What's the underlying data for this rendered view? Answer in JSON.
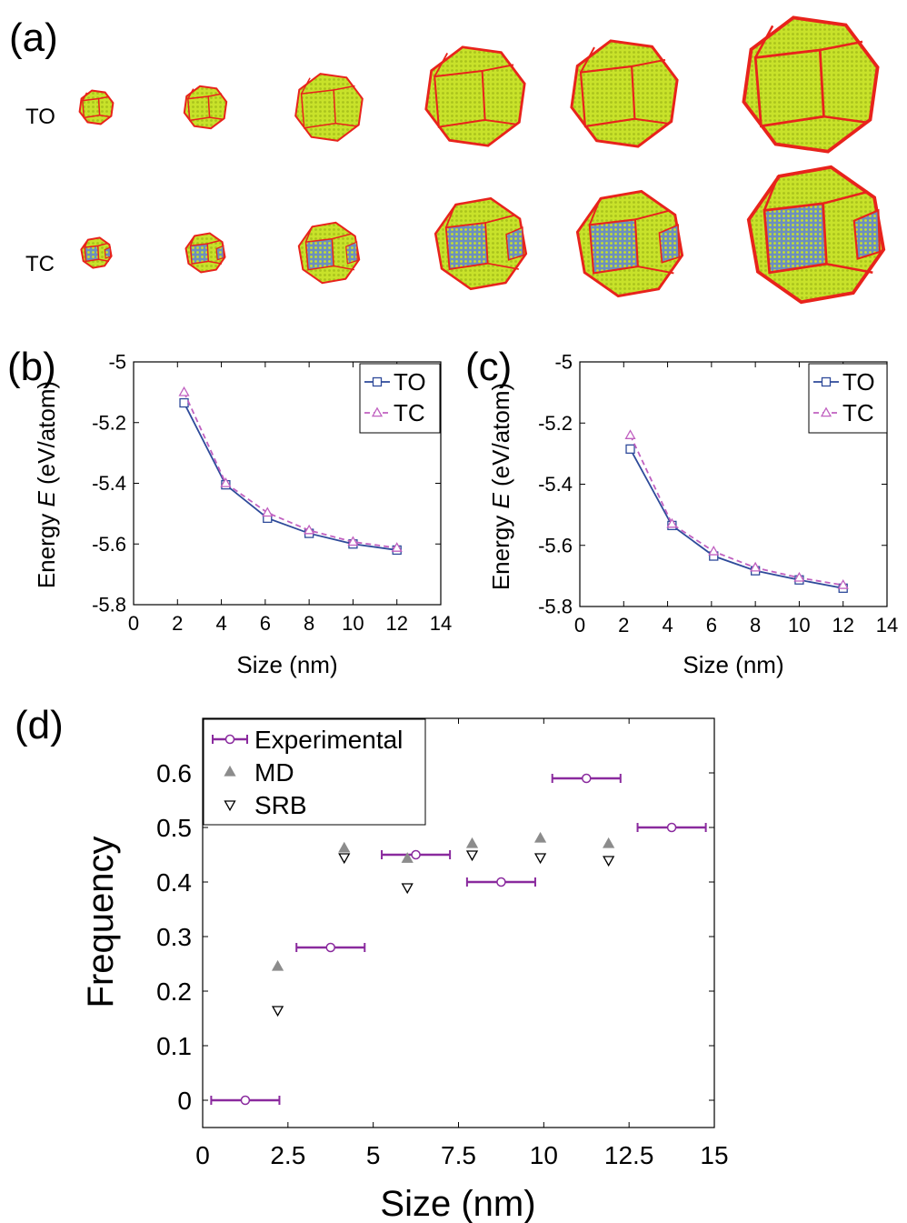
{
  "panel_a": {
    "label": "(a)",
    "row_labels": [
      "TO",
      "TC"
    ],
    "colors": {
      "face": "#c8e22a",
      "edge": "#e8231c",
      "square_face": "#6c8fbe"
    }
  },
  "chart_data": [
    {
      "id": "b",
      "panel_label": "(b)",
      "type": "line",
      "xlabel": "Size (nm)",
      "ylabel_prefix": "Energy ",
      "ylabel_var": "E",
      "ylabel_unit": " (eV/atom)",
      "xlim": [
        0,
        14
      ],
      "ylim": [
        -5.8,
        -5.0
      ],
      "xticks": [
        0,
        2,
        4,
        6,
        8,
        10,
        12,
        14
      ],
      "yticks": [
        -5.8,
        -5.6,
        -5.4,
        -5.2,
        -5
      ],
      "ytick_labels": [
        "-5.8",
        "-5.6",
        "-5.4",
        "-5.2",
        "-5"
      ],
      "legend_position": "top-right",
      "x": [
        2.3,
        4.2,
        6.1,
        8.0,
        10.0,
        12.0
      ],
      "series": [
        {
          "name": "TO",
          "marker": "square",
          "line": "solid",
          "color": "#2e4a9a",
          "values": [
            -5.135,
            -5.405,
            -5.515,
            -5.565,
            -5.6,
            -5.62
          ]
        },
        {
          "name": "TC",
          "marker": "triangle-up",
          "line": "dashed",
          "color": "#c060c0",
          "values": [
            -5.1,
            -5.4,
            -5.497,
            -5.555,
            -5.593,
            -5.613
          ]
        }
      ]
    },
    {
      "id": "c",
      "panel_label": "(c)",
      "type": "line",
      "xlabel": "Size (nm)",
      "ylabel_prefix": "Energy ",
      "ylabel_var": "E",
      "ylabel_unit": " (eV/atom)",
      "xlim": [
        0,
        14
      ],
      "ylim": [
        -5.8,
        -5.0
      ],
      "xticks": [
        0,
        2,
        4,
        6,
        8,
        10,
        12,
        14
      ],
      "yticks": [
        -5.8,
        -5.6,
        -5.4,
        -5.2,
        -5
      ],
      "ytick_labels": [
        "-5.8",
        "-5.6",
        "-5.4",
        "-5.2",
        "-5"
      ],
      "legend_position": "top-right",
      "x": [
        2.3,
        4.2,
        6.1,
        8.0,
        10.0,
        12.0
      ],
      "series": [
        {
          "name": "TO",
          "marker": "square",
          "line": "solid",
          "color": "#2e4a9a",
          "values": [
            -5.285,
            -5.535,
            -5.635,
            -5.683,
            -5.713,
            -5.74
          ]
        },
        {
          "name": "TC",
          "marker": "triangle-up",
          "line": "dashed",
          "color": "#c060c0",
          "values": [
            -5.24,
            -5.53,
            -5.62,
            -5.673,
            -5.706,
            -5.73
          ]
        }
      ]
    },
    {
      "id": "d",
      "panel_label": "(d)",
      "type": "scatter",
      "xlabel": "Size (nm)",
      "ylabel": "Frequency",
      "xlim": [
        0,
        15
      ],
      "ylim": [
        -0.05,
        0.7
      ],
      "xticks": [
        0,
        2.5,
        5,
        7.5,
        10,
        12.5,
        15
      ],
      "xtick_labels": [
        "0",
        "2.5",
        "5",
        "7.5",
        "10",
        "12.5",
        "15"
      ],
      "yticks": [
        0,
        0.1,
        0.2,
        0.3,
        0.4,
        0.5,
        0.6
      ],
      "ytick_labels": [
        "0",
        "0.1",
        "0.2",
        "0.3",
        "0.4",
        "0.5",
        "0.6"
      ],
      "legend_position": "top-left",
      "series": [
        {
          "name": "Experimental",
          "marker": "circle",
          "color": "#8a2a9e",
          "error_bars": "horizontal",
          "points": [
            {
              "x": 1.25,
              "y": 0.0,
              "xmin": 0.25,
              "xmax": 2.25
            },
            {
              "x": 3.75,
              "y": 0.28,
              "xmin": 2.75,
              "xmax": 4.75
            },
            {
              "x": 6.25,
              "y": 0.45,
              "xmin": 5.25,
              "xmax": 7.25
            },
            {
              "x": 8.75,
              "y": 0.4,
              "xmin": 7.75,
              "xmax": 9.75
            },
            {
              "x": 11.25,
              "y": 0.59,
              "xmin": 10.25,
              "xmax": 12.25
            },
            {
              "x": 13.75,
              "y": 0.5,
              "xmin": 12.75,
              "xmax": 14.75
            }
          ]
        },
        {
          "name": "MD",
          "marker": "triangle-up",
          "color": "#8c8c8c",
          "points": [
            {
              "x": 2.2,
              "y": 0.245
            },
            {
              "x": 4.15,
              "y": 0.462
            },
            {
              "x": 6.0,
              "y": 0.443
            },
            {
              "x": 7.9,
              "y": 0.47
            },
            {
              "x": 9.9,
              "y": 0.48
            },
            {
              "x": 11.9,
              "y": 0.47
            }
          ]
        },
        {
          "name": "SRB",
          "marker": "triangle-down",
          "color": "#000000",
          "points": [
            {
              "x": 2.2,
              "y": 0.165
            },
            {
              "x": 4.15,
              "y": 0.445
            },
            {
              "x": 6.0,
              "y": 0.39
            },
            {
              "x": 7.9,
              "y": 0.45
            },
            {
              "x": 9.9,
              "y": 0.445
            },
            {
              "x": 11.9,
              "y": 0.44
            }
          ]
        }
      ]
    }
  ]
}
